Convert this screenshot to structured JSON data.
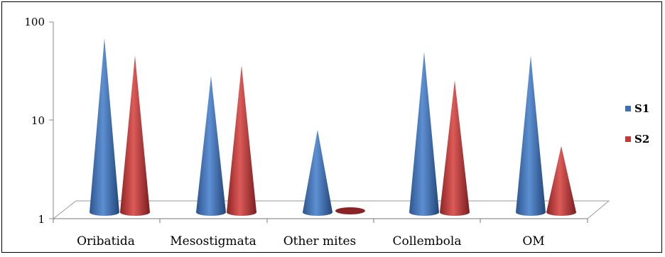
{
  "chart_data": {
    "type": "bar",
    "style": "3d-cone",
    "scale": "log",
    "ylim": [
      1,
      100
    ],
    "yticks": [
      "100",
      "10",
      "1"
    ],
    "categories": [
      "Oribatida",
      "Mesostigmata",
      "Other mites",
      "Collembola",
      "OM"
    ],
    "series": [
      {
        "name": "S1",
        "color": "#3f6fb0",
        "values": [
          52,
          22,
          6.5,
          38,
          35
        ]
      },
      {
        "name": "S2",
        "color": "#c1393a",
        "values": [
          35,
          28,
          1,
          20,
          4.5
        ]
      }
    ],
    "legend": "right",
    "grid": false,
    "title": "",
    "xlabel": "",
    "ylabel": ""
  }
}
